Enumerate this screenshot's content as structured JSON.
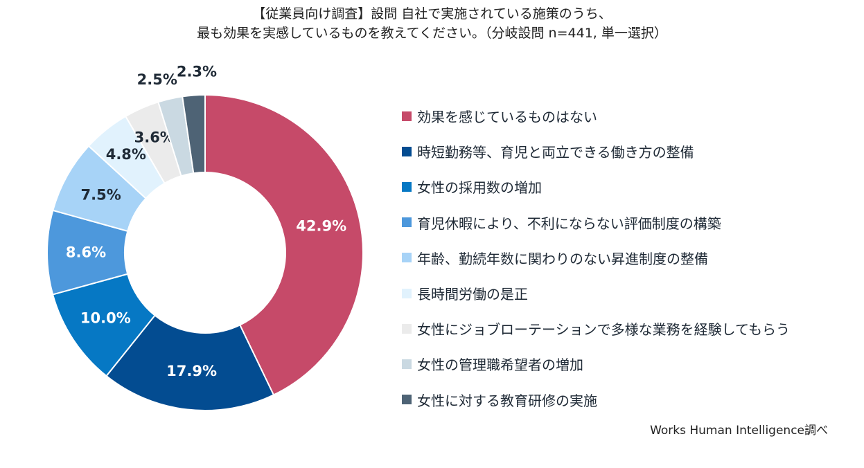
{
  "chart_data": {
    "type": "pie",
    "title": [
      "【従業員向け調査】設問 自社で実施されている施策のうち、",
      "最も効果を実感しているものを教えてください。（分岐設問 n=441, 単一選択）"
    ],
    "categories": [
      "効果を感じているものはない",
      "時短勤務等、育児と両立できる働き方の整備",
      "女性の採用数の増加",
      "育児休暇により、不利にならない評価制度の構築",
      "年齢、勤続年数に関わりのない昇進制度の整備",
      "長時間労働の是正",
      "女性にジョブローテーションで多様な業務を経験してもらう",
      "女性の管理職希望者の増加",
      "女性に対する教育研修の実施"
    ],
    "values": [
      42.9,
      17.9,
      10.0,
      8.6,
      7.5,
      4.8,
      3.6,
      2.5,
      2.3
    ],
    "data_labels": [
      "42.9%",
      "17.9%",
      "10.0%",
      "8.6%",
      "7.5%",
      "4.8%",
      "3.6%",
      "2.5%",
      "2.3%"
    ],
    "colors": [
      "#c64a69",
      "#034c91",
      "#0678c4",
      "#4d98dc",
      "#a7d3f7",
      "#e1f2fd",
      "#ebebeb",
      "#cad9e2",
      "#4e6375"
    ],
    "label_colors": [
      "#ffffff",
      "#ffffff",
      "#ffffff",
      "#ffffff",
      "#1f2a36",
      "#1f2a36",
      "#1f2a36",
      "#1f2a36",
      "#1f2a36"
    ],
    "legend_position": "right",
    "donut": true
  },
  "source": "Works Human Intelligence調べ"
}
